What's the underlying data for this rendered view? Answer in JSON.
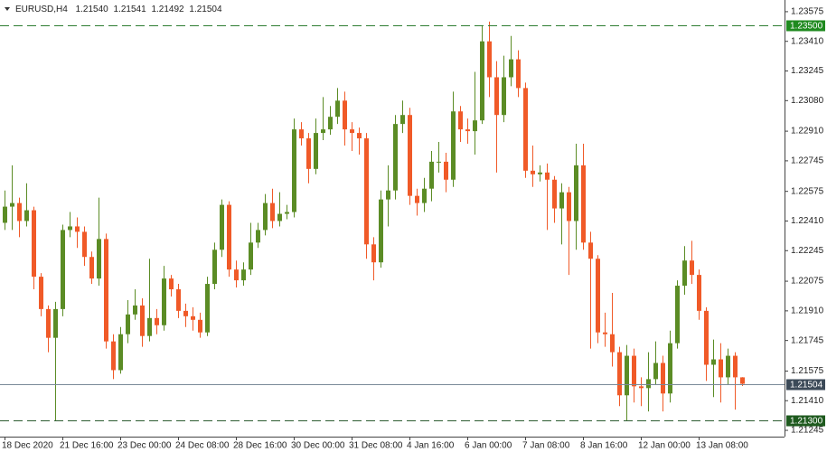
{
  "chart_data": {
    "type": "candlestick",
    "title": "EURUSD,H4",
    "header_values": [
      {
        "value": 1.2154,
        "label": "1.21540"
      },
      {
        "value": 1.21541,
        "label": "1.21541"
      },
      {
        "value": 1.21492,
        "label": "1.21492"
      },
      {
        "value": 1.21504,
        "label": "1.21504"
      }
    ],
    "up_color": "#5b8c25",
    "down_color": "#f05a28",
    "ylim": [
      1.2121,
      1.2364
    ],
    "yticks": [
      1.23575,
      {
        "value": 1.2341,
        "label": "1.23410"
      },
      1.23245,
      {
        "value": 1.2308,
        "label": "1.23080"
      },
      {
        "value": 1.2291,
        "label": "1.22910"
      },
      1.22745,
      1.22575,
      {
        "value": 1.2241,
        "label": "1.22410"
      },
      1.22245,
      1.22075,
      {
        "value": 1.2191,
        "label": "1.21910"
      },
      1.21745,
      1.21575,
      {
        "value": 1.2141,
        "label": "1.21410"
      },
      1.21245
    ],
    "levels": [
      {
        "value": 1.235,
        "label": "1.23500",
        "style": "dashed",
        "color": "#2e7d32",
        "label_color": "#1f8a1f"
      },
      {
        "value": 1.21504,
        "label": "1.21504",
        "style": "solid",
        "color": "#7a8a99",
        "label_color": "#3c4a58"
      },
      {
        "value": 1.213,
        "label": "1.21300",
        "style": "dashed",
        "color": "#2e5d32",
        "label_color": "#1e5a1e"
      }
    ],
    "categories": [
      "18 Dec 2020",
      null,
      null,
      null,
      null,
      null,
      null,
      null,
      "21 Dec 16:00",
      null,
      null,
      null,
      null,
      null,
      null,
      null,
      "23 Dec 00:00",
      null,
      null,
      null,
      null,
      null,
      null,
      null,
      "24 Dec 08:00",
      null,
      null,
      null,
      null,
      null,
      null,
      null,
      "28 Dec 16:00",
      null,
      null,
      null,
      null,
      null,
      null,
      null,
      "30 Dec 00:00",
      null,
      null,
      null,
      null,
      null,
      null,
      null,
      "31 Dec 08:00",
      null,
      null,
      null,
      null,
      null,
      null,
      null,
      "4 Jan 16:00",
      null,
      null,
      null,
      null,
      null,
      null,
      null,
      "6 Jan 00:00",
      null,
      null,
      null,
      null,
      null,
      null,
      null,
      "7 Jan 08:00",
      null,
      null,
      null,
      null,
      null,
      null,
      null,
      "8 Jan 16:00",
      null,
      null,
      null,
      null,
      null,
      null,
      null,
      "12 Jan 00:00",
      null,
      null,
      null,
      null,
      null,
      null,
      null,
      "13 Jan 08:00",
      null,
      null,
      null,
      null,
      null,
      null
    ],
    "ohlc": [
      [
        1.224,
        1.2258,
        1.2236,
        1.2249
      ],
      [
        1.2249,
        1.2272,
        1.2236,
        1.2251
      ],
      [
        1.2251,
        1.2254,
        1.2232,
        1.2241
      ],
      [
        1.2241,
        1.2262,
        1.2238,
        1.2247
      ],
      [
        1.2247,
        1.2249,
        1.2203,
        1.221
      ],
      [
        1.221,
        1.2212,
        1.2188,
        1.2192
      ],
      [
        1.2192,
        1.2194,
        1.2168,
        1.2176
      ],
      [
        1.2176,
        1.2196,
        1.213,
        1.2192
      ],
      [
        1.2192,
        1.2239,
        1.2188,
        1.2236
      ],
      [
        1.2236,
        1.2246,
        1.2232,
        1.2238
      ],
      [
        1.2238,
        1.2243,
        1.2226,
        1.2235
      ],
      [
        1.2235,
        1.2238,
        1.2216,
        1.2221
      ],
      [
        1.2221,
        1.2224,
        1.2206,
        1.2209
      ],
      [
        1.2209,
        1.2254,
        1.2205,
        1.2231
      ],
      [
        1.2231,
        1.2234,
        1.217,
        1.2174
      ],
      [
        1.2174,
        1.2178,
        1.2153,
        1.2158
      ],
      [
        1.2158,
        1.2182,
        1.2156,
        1.2178
      ],
      [
        1.2178,
        1.2197,
        1.2173,
        1.2189
      ],
      [
        1.2189,
        1.2203,
        1.2186,
        1.2194
      ],
      [
        1.2194,
        1.2198,
        1.2171,
        1.2177
      ],
      [
        1.2177,
        1.222,
        1.2174,
        1.2187
      ],
      [
        1.2187,
        1.2192,
        1.2178,
        1.2183
      ],
      [
        1.2183,
        1.2216,
        1.218,
        1.2209
      ],
      [
        1.2209,
        1.2211,
        1.2199,
        1.2203
      ],
      [
        1.2203,
        1.2206,
        1.2187,
        1.2191
      ],
      [
        1.2191,
        1.2195,
        1.2182,
        1.2188
      ],
      [
        1.2188,
        1.2193,
        1.218,
        1.2186
      ],
      [
        1.2186,
        1.219,
        1.2176,
        1.2179
      ],
      [
        1.2179,
        1.221,
        1.2177,
        1.2206
      ],
      [
        1.2206,
        1.2229,
        1.2203,
        1.2225
      ],
      [
        1.2225,
        1.2253,
        1.2221,
        1.225
      ],
      [
        1.225,
        1.2252,
        1.221,
        1.2214
      ],
      [
        1.2214,
        1.2219,
        1.2204,
        1.2208
      ],
      [
        1.2208,
        1.2218,
        1.2205,
        1.2214
      ],
      [
        1.2214,
        1.224,
        1.2211,
        1.2229
      ],
      [
        1.2229,
        1.224,
        1.2226,
        1.2236
      ],
      [
        1.2236,
        1.2256,
        1.2233,
        1.2251
      ],
      [
        1.2251,
        1.2259,
        1.2237,
        1.2241
      ],
      [
        1.2241,
        1.2257,
        1.2238,
        1.2245
      ],
      [
        1.2245,
        1.225,
        1.2242,
        1.2246
      ],
      [
        1.2246,
        1.2298,
        1.2243,
        1.2292
      ],
      [
        1.2292,
        1.2296,
        1.2283,
        1.2287
      ],
      [
        1.2287,
        1.229,
        1.2262,
        1.227
      ],
      [
        1.227,
        1.2298,
        1.2267,
        1.229
      ],
      [
        1.229,
        1.231,
        1.2286,
        1.2292
      ],
      [
        1.2292,
        1.2305,
        1.2289,
        1.2299
      ],
      [
        1.2299,
        1.2315,
        1.2295,
        1.2308
      ],
      [
        1.2308,
        1.2313,
        1.2283,
        1.2292
      ],
      [
        1.2292,
        1.2296,
        1.228,
        1.229
      ],
      [
        1.229,
        1.2293,
        1.2278,
        1.2287
      ],
      [
        1.2287,
        1.229,
        1.222,
        1.2228
      ],
      [
        1.2228,
        1.2232,
        1.2208,
        1.2218
      ],
      [
        1.2218,
        1.2258,
        1.2215,
        1.2253
      ],
      [
        1.2253,
        1.2272,
        1.2238,
        1.2258
      ],
      [
        1.2258,
        1.23,
        1.2253,
        1.2295
      ],
      [
        1.2295,
        1.2308,
        1.229,
        1.23
      ],
      [
        1.23,
        1.2304,
        1.225,
        1.2255
      ],
      [
        1.2255,
        1.2259,
        1.2244,
        1.2251
      ],
      [
        1.2251,
        1.2265,
        1.2246,
        1.2259
      ],
      [
        1.2259,
        1.228,
        1.2252,
        1.2274
      ],
      [
        1.2274,
        1.2285,
        1.2268,
        1.2274
      ],
      [
        1.2274,
        1.2279,
        1.2257,
        1.2264
      ],
      [
        1.2264,
        1.2313,
        1.226,
        1.2302
      ],
      [
        1.2302,
        1.2305,
        1.2285,
        1.2292
      ],
      [
        1.2292,
        1.2298,
        1.2284,
        1.2291
      ],
      [
        1.2291,
        1.2324,
        1.2278,
        1.2297
      ],
      [
        1.2297,
        1.235,
        1.2295,
        1.2341
      ],
      [
        1.2341,
        1.2352,
        1.231,
        1.2321
      ],
      [
        1.2321,
        1.233,
        1.2268,
        1.23
      ],
      [
        1.23,
        1.2333,
        1.2296,
        1.2321
      ],
      [
        1.2321,
        1.2344,
        1.2316,
        1.2331
      ],
      [
        1.2331,
        1.2336,
        1.231,
        1.2315
      ],
      [
        1.2315,
        1.2318,
        1.2265,
        1.2269
      ],
      [
        1.2269,
        1.2283,
        1.226,
        1.2267
      ],
      [
        1.2267,
        1.2272,
        1.2263,
        1.2268
      ],
      [
        1.2268,
        1.2273,
        1.2236,
        1.2264
      ],
      [
        1.2264,
        1.2266,
        1.224,
        1.2248
      ],
      [
        1.2248,
        1.2262,
        1.2228,
        1.2257
      ],
      [
        1.2257,
        1.226,
        1.2211,
        1.2241
      ],
      [
        1.2241,
        1.2284,
        1.2225,
        1.2272
      ],
      [
        1.2272,
        1.2284,
        1.2225,
        1.2229
      ],
      [
        1.2229,
        1.2235,
        1.217,
        1.222
      ],
      [
        1.222,
        1.2222,
        1.2173,
        1.2179
      ],
      [
        1.2179,
        1.219,
        1.2171,
        1.2178
      ],
      [
        1.2178,
        1.2201,
        1.216,
        1.2168
      ],
      [
        1.2168,
        1.2171,
        1.2138,
        1.2144
      ],
      [
        1.2144,
        1.2172,
        1.213,
        1.2166
      ],
      [
        1.2166,
        1.217,
        1.214,
        1.2149
      ],
      [
        1.2149,
        1.2154,
        1.2138,
        1.2148
      ],
      [
        1.2148,
        1.2168,
        1.2135,
        1.2153
      ],
      [
        1.2153,
        1.2174,
        1.215,
        1.2162
      ],
      [
        1.2162,
        1.2166,
        1.2135,
        1.2145
      ],
      [
        1.2145,
        1.218,
        1.214,
        1.2173
      ],
      [
        1.2173,
        1.2208,
        1.217,
        1.2205
      ],
      [
        1.2205,
        1.2227,
        1.22,
        1.2219
      ],
      [
        1.2219,
        1.223,
        1.2206,
        1.2211
      ],
      [
        1.2211,
        1.2214,
        1.2186,
        1.2191
      ],
      [
        1.2191,
        1.2193,
        1.2152,
        1.2161
      ],
      [
        1.2161,
        1.2175,
        1.2143,
        1.2164
      ],
      [
        1.2164,
        1.2173,
        1.214,
        1.2154
      ],
      [
        1.2154,
        1.217,
        1.215,
        1.2166
      ],
      [
        1.2166,
        1.2168,
        1.2136,
        1.2154
      ],
      [
        1.2154,
        1.21541,
        1.21492,
        1.21504
      ]
    ]
  }
}
